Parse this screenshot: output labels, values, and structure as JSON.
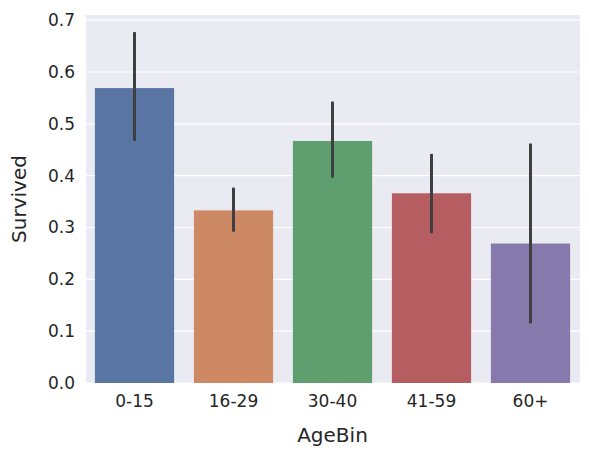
{
  "chart_data": {
    "type": "bar",
    "x_label": "AgeBin",
    "y_label": "Survived",
    "categories": [
      "0-15",
      "16-29",
      "30-40",
      "41-59",
      "60+"
    ],
    "values": [
      0.569,
      0.333,
      0.467,
      0.366,
      0.269
    ],
    "ci_low": [
      0.467,
      0.292,
      0.396,
      0.289,
      0.115
    ],
    "ci_high": [
      0.677,
      0.377,
      0.543,
      0.442,
      0.462
    ],
    "colors": [
      "#5875a4",
      "#cc8963",
      "#5f9e6e",
      "#b55d60",
      "#857aab"
    ],
    "ylim": [
      0,
      0.71
    ],
    "yticks": [
      {
        "value": 0,
        "label": "0.0"
      },
      0.1,
      0.2,
      0.3,
      0.4,
      0.5,
      0.6,
      0.7
    ],
    "grid": true
  }
}
